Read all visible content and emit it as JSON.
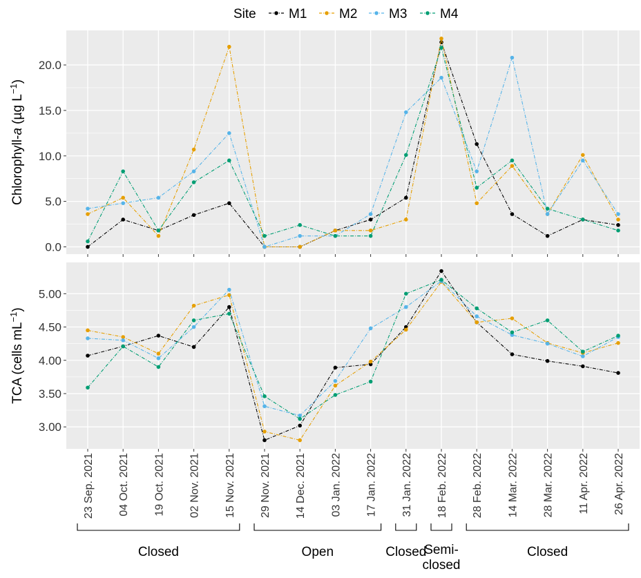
{
  "legend": {
    "title": "Site",
    "items": [
      {
        "name": "M1",
        "color": "#000000"
      },
      {
        "name": "M2",
        "color": "#E69F00"
      },
      {
        "name": "M3",
        "color": "#56B4E9"
      },
      {
        "name": "M4",
        "color": "#009E73"
      }
    ]
  },
  "period_labels": [
    {
      "line1": "Closed",
      "line2": ""
    },
    {
      "line1": "Open",
      "line2": ""
    },
    {
      "line1": "Closed",
      "line2": ""
    },
    {
      "line1": "Semi-",
      "line2": "closed"
    },
    {
      "line1": "Closed",
      "line2": ""
    }
  ],
  "chart_data": {
    "type": "line",
    "panels": 2,
    "legend_position": "top",
    "grid": true,
    "categories": [
      "23 Sep. 2021",
      "04 Oct. 2021",
      "19 Oct. 2021",
      "02 Nov. 2021",
      "15 Nov. 2021",
      "29 Nov. 2021",
      "14 Dec. 2021",
      "03 Jan. 2022",
      "17 Jan. 2022",
      "31 Jan. 2022",
      "18 Feb. 2022",
      "28 Feb. 2022",
      "14 Mar. 2022",
      "28 Mar. 2022",
      "11 Apr. 2022",
      "26 Apr. 2022"
    ],
    "panel_data": [
      {
        "ylabel_main": "Chlorophyll-",
        "ylabel_italic": "a",
        "ylabel_unit": " (µg L",
        "ylabel_sup": "−1",
        "ylabel_end": ")",
        "ylim": [
          -0.8,
          23.8
        ],
        "yticks": [
          0,
          5,
          10,
          15,
          20
        ],
        "yticklabels": [
          "0.0",
          "5.0",
          "10.0",
          "15.0",
          "20.0"
        ],
        "series": [
          {
            "name": "M1",
            "values": [
              0.0,
              3.0,
              1.8,
              3.5,
              4.8,
              0.0,
              0.0,
              1.8,
              3.0,
              5.4,
              22.5,
              11.3,
              3.6,
              1.2,
              3.0,
              2.4
            ]
          },
          {
            "name": "M2",
            "values": [
              3.6,
              5.4,
              1.2,
              10.7,
              22.0,
              0.0,
              0.0,
              1.8,
              1.8,
              3.0,
              22.9,
              4.8,
              8.9,
              3.6,
              10.1,
              3.0
            ]
          },
          {
            "name": "M3",
            "values": [
              4.2,
              4.8,
              5.4,
              8.3,
              12.5,
              0.0,
              1.2,
              1.2,
              3.6,
              14.8,
              18.6,
              8.3,
              20.8,
              3.6,
              9.5,
              3.6
            ]
          },
          {
            "name": "M4",
            "values": [
              0.6,
              8.3,
              1.8,
              7.1,
              9.5,
              1.2,
              2.4,
              1.2,
              1.2,
              10.1,
              21.9,
              6.5,
              9.5,
              4.2,
              3.0,
              1.8
            ]
          }
        ]
      },
      {
        "ylabel_main": "TCA (cells mL",
        "ylabel_italic": "",
        "ylabel_unit": "",
        "ylabel_sup": "−1",
        "ylabel_end": ")",
        "ylim": [
          2.67,
          5.47
        ],
        "yticks": [
          3.0,
          3.5,
          4.0,
          4.5,
          5.0
        ],
        "yticklabels": [
          "3.00",
          "3.50",
          "4.00",
          "4.50",
          "5.00"
        ],
        "series": [
          {
            "name": "M1",
            "values": [
              4.07,
              4.21,
              4.37,
              4.2,
              4.8,
              2.8,
              3.02,
              3.89,
              3.94,
              4.5,
              5.34,
              4.57,
              4.09,
              3.99,
              3.91,
              3.81
            ]
          },
          {
            "name": "M2",
            "values": [
              4.45,
              4.35,
              4.1,
              4.82,
              4.98,
              2.93,
              2.8,
              3.62,
              3.98,
              4.46,
              5.18,
              4.57,
              4.63,
              4.26,
              4.11,
              4.26
            ]
          },
          {
            "name": "M3",
            "values": [
              4.33,
              4.3,
              4.03,
              4.5,
              5.06,
              3.31,
              3.17,
              3.69,
              4.48,
              4.8,
              5.19,
              4.66,
              4.38,
              4.25,
              4.06,
              4.35
            ]
          },
          {
            "name": "M4",
            "values": [
              3.59,
              4.21,
              3.9,
              4.6,
              4.7,
              3.46,
              3.12,
              3.48,
              3.68,
              5.0,
              5.21,
              4.78,
              4.42,
              4.6,
              4.13,
              4.37
            ]
          }
        ]
      }
    ]
  }
}
